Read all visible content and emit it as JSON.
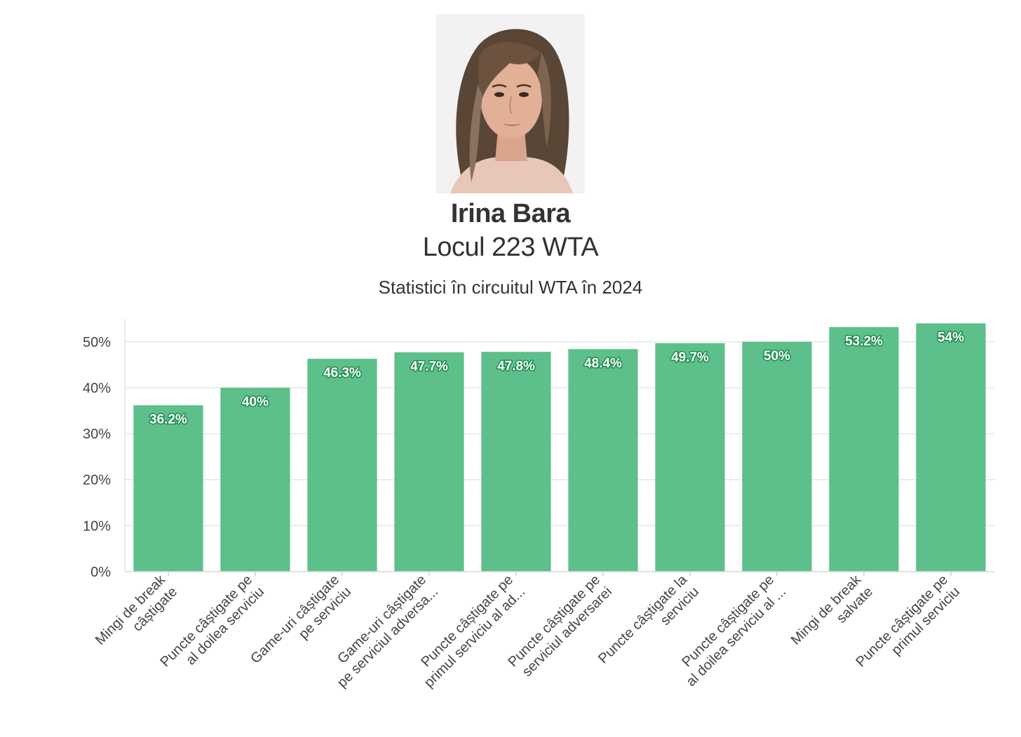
{
  "player": {
    "name": "Irina Bara",
    "rank": "Locul 223 WTA"
  },
  "chart_data": {
    "type": "bar",
    "title": "Statistici în circuitul WTA în 2024",
    "xlabel": "",
    "ylabel": "",
    "ylim": [
      0,
      55
    ],
    "yticks": [
      "0%",
      "10%",
      "20%",
      "30%",
      "40%",
      "50%"
    ],
    "ytick_values": [
      0,
      10,
      20,
      30,
      40,
      50
    ],
    "bar_color": "#5dbf8a",
    "label_outline_color": "#1e8a4f",
    "categories": [
      [
        "Mingi de break",
        "câștigate"
      ],
      [
        "Puncte câștigate pe",
        "al doilea serviciu"
      ],
      [
        "Game-uri câștigate",
        "pe serviciu"
      ],
      [
        "Game-uri câștigate",
        "pe serviciul adversa..."
      ],
      [
        "Puncte câștigate pe",
        "primul serviciu al ad..."
      ],
      [
        "Puncte câștigate pe",
        "serviciul adversarei"
      ],
      [
        "Puncte câștigate la",
        "serviciu"
      ],
      [
        "Puncte câștigate pe",
        "al doilea serviciu al ..."
      ],
      [
        "Mingi de break",
        "salvate"
      ],
      [
        "Puncte câștigate pe",
        "primul serviciu"
      ]
    ],
    "values": [
      36.2,
      40,
      46.3,
      47.7,
      47.8,
      48.4,
      49.7,
      50,
      53.2,
      54
    ],
    "data_labels": [
      "36.2%",
      "40%",
      "46.3%",
      "47.7%",
      "47.8%",
      "48.4%",
      "49.7%",
      "50%",
      "53.2%",
      "54%"
    ]
  }
}
